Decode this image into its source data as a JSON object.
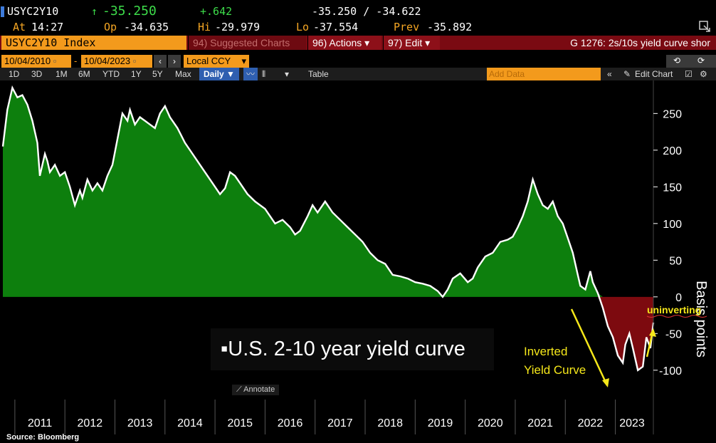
{
  "header": {
    "ticker": "USYC2Y10",
    "last_arrow": "↑",
    "last": "-35.250",
    "change": "+.642",
    "bid_ask": "-35.250 / -34.622",
    "time_label": "At",
    "time": "14:27",
    "open_label": "Op",
    "open": "-34.635",
    "high_label": "Hi",
    "high": "-29.979",
    "low_label": "Lo",
    "low": "-37.554",
    "prev_label": "Prev",
    "prev": "-35.892"
  },
  "command_bar": {
    "security": "USYC2Y10 Index",
    "suggested": "94) Suggested Charts",
    "actions": "96) Actions ▾",
    "edit": "97) Edit ▾",
    "title": "G 1276: 2s/10s yield curve shor"
  },
  "date_bar": {
    "start_date": "10/04/2010",
    "end_date": "10/04/2023",
    "currency": "Local CCY"
  },
  "period_bar": {
    "periods": [
      "1D",
      "3D",
      "1M",
      "6M",
      "YTD",
      "1Y",
      "5Y",
      "Max"
    ],
    "frequency": "Daily ▼",
    "table_label": "Table",
    "add_data_placeholder": "Add Data",
    "edit_chart_label": "Edit Chart"
  },
  "overlay": {
    "chart_label": "▪U.S. 2-10 year yield curve",
    "annotate_label": "Annotate",
    "inverted_label_line1": "Inverted",
    "inverted_label_line2": "Yield Curve",
    "uninverting_label": "uninverting",
    "source": "Source: Bloomberg"
  },
  "colors": {
    "positive_fill": "#0d7f0d",
    "negative_fill": "#7d0a0f",
    "line": "#ffffff",
    "annotation": "#f5e71a",
    "bloomberg_amber": "#f39a1c"
  },
  "chart_data": {
    "type": "area",
    "ylabel": "Basis points",
    "y_ticks": [
      250,
      200,
      150,
      100,
      50,
      0,
      -50,
      -100
    ],
    "ylim": [
      -140,
      295
    ],
    "x_ticks": [
      "2011",
      "2012",
      "2013",
      "2014",
      "2015",
      "2016",
      "2017",
      "2018",
      "2019",
      "2020",
      "2021",
      "2022",
      "2023"
    ],
    "xlim": [
      2010.76,
      2023.76
    ],
    "grid": false,
    "series": [
      {
        "x": [
          2010.76,
          2010.85,
          2010.95,
          2011.05,
          2011.15,
          2011.25,
          2011.35,
          2011.45,
          2011.5,
          2011.6,
          2011.65,
          2011.7,
          2011.8,
          2011.9,
          2012.0,
          2012.1,
          2012.2,
          2012.3,
          2012.35,
          2012.45,
          2012.55,
          2012.65,
          2012.75,
          2012.85,
          2012.95,
          2013.05,
          2013.15,
          2013.25,
          2013.3,
          2013.4,
          2013.5,
          2013.6,
          2013.7,
          2013.8,
          2013.9,
          2014.0,
          2014.1,
          2014.25,
          2014.4,
          2014.55,
          2014.7,
          2014.85,
          2015.0,
          2015.1,
          2015.2,
          2015.3,
          2015.4,
          2015.5,
          2015.65,
          2015.8,
          2016.0,
          2016.2,
          2016.35,
          2016.5,
          2016.6,
          2016.7,
          2016.85,
          2016.95,
          2017.05,
          2017.2,
          2017.35,
          2017.5,
          2017.65,
          2017.8,
          2017.95,
          2018.1,
          2018.25,
          2018.4,
          2018.55,
          2018.7,
          2018.85,
          2019.0,
          2019.15,
          2019.3,
          2019.45,
          2019.55,
          2019.65,
          2019.75,
          2019.9,
          2020.05,
          2020.15,
          2020.25,
          2020.4,
          2020.55,
          2020.7,
          2020.85,
          2020.95,
          2021.05,
          2021.15,
          2021.25,
          2021.35,
          2021.45,
          2021.55,
          2021.65,
          2021.75,
          2021.85,
          2021.95,
          2022.05,
          2022.15,
          2022.25,
          2022.3,
          2022.4,
          2022.5,
          2022.55,
          2022.65,
          2022.75,
          2022.85,
          2022.95,
          2023.05,
          2023.15,
          2023.2,
          2023.28,
          2023.35,
          2023.45,
          2023.55,
          2023.62,
          2023.7,
          2023.76
        ],
        "y": [
          205,
          255,
          285,
          272,
          275,
          262,
          240,
          210,
          165,
          195,
          185,
          170,
          180,
          165,
          170,
          150,
          125,
          145,
          135,
          160,
          145,
          155,
          145,
          165,
          180,
          215,
          250,
          240,
          255,
          235,
          245,
          240,
          235,
          230,
          250,
          260,
          245,
          230,
          210,
          195,
          180,
          165,
          150,
          140,
          148,
          170,
          165,
          155,
          140,
          130,
          120,
          100,
          105,
          95,
          85,
          90,
          110,
          125,
          115,
          130,
          115,
          105,
          95,
          85,
          75,
          60,
          50,
          45,
          30,
          28,
          25,
          20,
          18,
          15,
          8,
          0,
          10,
          25,
          32,
          20,
          25,
          40,
          55,
          60,
          75,
          78,
          82,
          95,
          110,
          130,
          160,
          140,
          125,
          120,
          130,
          110,
          100,
          80,
          60,
          30,
          15,
          10,
          35,
          20,
          5,
          -15,
          -40,
          -55,
          -80,
          -90,
          -65,
          -50,
          -70,
          -100,
          -95,
          -55,
          -70,
          -35
        ]
      }
    ],
    "annotations": [
      "Inverted Yield Curve",
      "uninverting"
    ]
  }
}
